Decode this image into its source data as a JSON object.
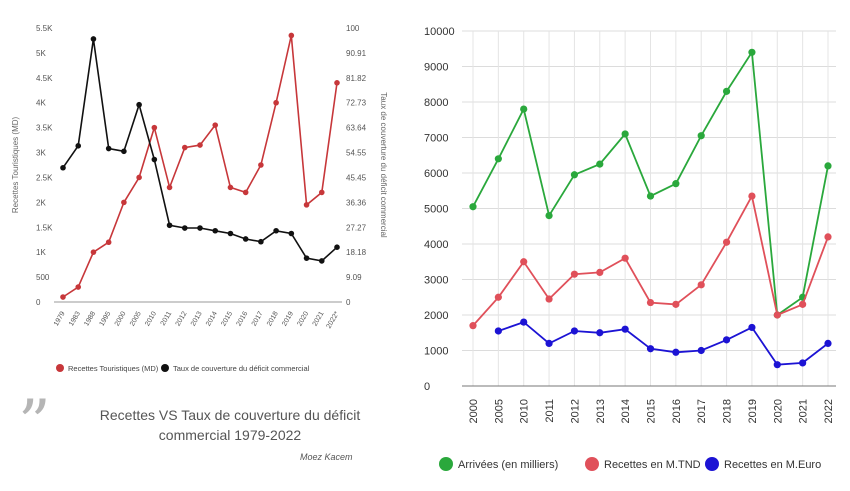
{
  "caption": {
    "title_line1": "Recettes VS Taux de couverture du déficit",
    "title_line2": "commercial 1979-2022",
    "author": "Moez Kacem"
  },
  "chart_data": [
    {
      "type": "line",
      "categories": [
        "1979",
        "1983",
        "1988",
        "1995",
        "2000",
        "2005",
        "2010",
        "2011",
        "2012",
        "2013",
        "2014",
        "2015",
        "2016",
        "2017",
        "2018",
        "2019",
        "2020",
        "2021",
        "2022*"
      ],
      "series": [
        {
          "name": "Recettes Touristiques (MD)",
          "axis": "left",
          "color": "#c7373a",
          "values": [
            100,
            300,
            1000,
            1200,
            2000,
            2500,
            3500,
            2300,
            3100,
            3150,
            3550,
            2300,
            2200,
            2750,
            4000,
            5350,
            1950,
            2200,
            4400
          ]
        },
        {
          "name": "Taux de couverture du déficit commercial",
          "axis": "right",
          "color": "#111111",
          "values": [
            49,
            57,
            96,
            56,
            55,
            72,
            52,
            28,
            27,
            27,
            26,
            25,
            23,
            22,
            26,
            25,
            16,
            15,
            20
          ]
        }
      ],
      "ylabel_left": "Recettes Touristiques (MD)",
      "ylabel_right": "Taux de couverture du déficit commercial",
      "yticks_left": [
        "0",
        "500",
        "1K",
        "1.5K",
        "2K",
        "2.5K",
        "3K",
        "3.5K",
        "4K",
        "4.5K",
        "5K",
        "5.5K"
      ],
      "yticks_right": [
        "0",
        "9.09",
        "18.18",
        "27.27",
        "36.36",
        "45.45",
        "54.55",
        "63.64",
        "72.73",
        "81.82",
        "90.91",
        "100"
      ],
      "ylim_left": [
        0,
        5500
      ],
      "ylim_right": [
        0,
        100
      ],
      "grid": false,
      "legend_position": "bottom"
    },
    {
      "type": "line",
      "categories": [
        "2000",
        "2005",
        "2010",
        "2011",
        "2012",
        "2013",
        "2014",
        "2015",
        "2016",
        "2017",
        "2018",
        "2019",
        "2020",
        "2021",
        "2022"
      ],
      "series": [
        {
          "name": "Arrivées (en milliers)",
          "color": "#2aa83c",
          "values": [
            5050,
            6400,
            7800,
            4800,
            5950,
            6250,
            7100,
            5350,
            5700,
            7050,
            8300,
            9400,
            2000,
            2500,
            6200
          ]
        },
        {
          "name": "Recettes en M.TND",
          "color": "#e0505a",
          "values": [
            1700,
            2500,
            3500,
            2450,
            3150,
            3200,
            3600,
            2350,
            2300,
            2850,
            4050,
            5350,
            2000,
            2300,
            4200
          ]
        },
        {
          "name": "Recettes en M.Euro",
          "color": "#1c13d4",
          "values": [
            null,
            1550,
            1800,
            1200,
            1550,
            1500,
            1600,
            1050,
            950,
            1000,
            1300,
            1650,
            600,
            650,
            1200
          ]
        }
      ],
      "yticks": [
        "0",
        "1000",
        "2000",
        "3000",
        "4000",
        "5000",
        "6000",
        "7000",
        "8000",
        "9000",
        "10000"
      ],
      "ylim": [
        0,
        10000
      ],
      "grid": true,
      "legend_position": "bottom"
    }
  ]
}
